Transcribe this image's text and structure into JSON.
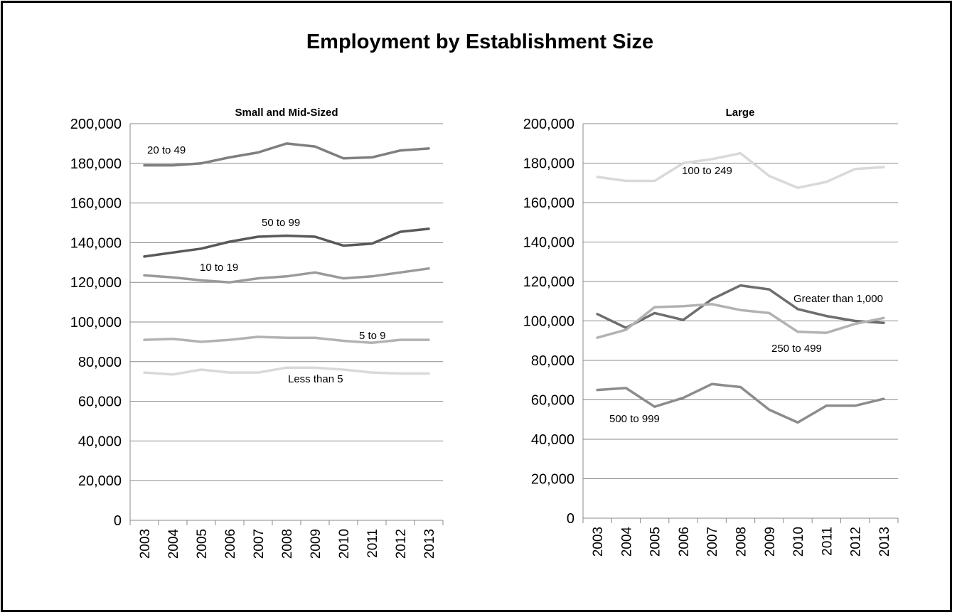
{
  "title": "Employment by Establishment Size",
  "chart_data": [
    {
      "type": "line",
      "title": "Small and Mid-Sized",
      "xlabel": "",
      "ylabel": "",
      "ylim": [
        0,
        200000
      ],
      "yticks": [
        "0",
        "20,000",
        "40,000",
        "60,000",
        "80,000",
        "100,000",
        "120,000",
        "140,000",
        "160,000",
        "180,000",
        "200,000"
      ],
      "categories": [
        "2003",
        "2004",
        "2005",
        "2006",
        "2007",
        "2008",
        "2009",
        "2010",
        "2011",
        "2012",
        "2013"
      ],
      "grid": true,
      "series": [
        {
          "name": "20 to 49",
          "color": "#7f7f7f",
          "values": [
            179000,
            179000,
            180000,
            183000,
            185500,
            190000,
            188500,
            182500,
            183000,
            186500,
            187500
          ]
        },
        {
          "name": "50 to 99",
          "color": "#595959",
          "values": [
            133000,
            135000,
            137000,
            140500,
            143000,
            143500,
            143000,
            138500,
            139500,
            145500,
            147000
          ]
        },
        {
          "name": "10 to 19",
          "color": "#9a9a9a",
          "values": [
            123500,
            122500,
            121000,
            120000,
            122000,
            123000,
            125000,
            122000,
            123000,
            125000,
            127000
          ]
        },
        {
          "name": "5 to 9",
          "color": "#b2b2b2",
          "values": [
            91000,
            91500,
            90000,
            91000,
            92500,
            92000,
            92000,
            90500,
            89500,
            91000,
            91000
          ]
        },
        {
          "name": "Less than 5",
          "color": "#d9d9d9",
          "values": [
            74500,
            73500,
            76000,
            74500,
            74500,
            77000,
            77000,
            76000,
            74500,
            74000,
            74000
          ]
        }
      ]
    },
    {
      "type": "line",
      "title": "Large",
      "xlabel": "",
      "ylabel": "",
      "ylim": [
        0,
        200000
      ],
      "yticks": [
        "0",
        "20,000",
        "40,000",
        "60,000",
        "80,000",
        "100,000",
        "120,000",
        "140,000",
        "160,000",
        "180,000",
        "200,000"
      ],
      "categories": [
        "2003",
        "2004",
        "2005",
        "2006",
        "2007",
        "2008",
        "2009",
        "2010",
        "2011",
        "2012",
        "2013"
      ],
      "grid": true,
      "series": [
        {
          "name": "100 to 249",
          "color": "#d9d9d9",
          "values": [
            173000,
            171000,
            171000,
            180000,
            182000,
            185000,
            173500,
            167500,
            170500,
            177000,
            178000
          ]
        },
        {
          "name": "Greater than 1,000",
          "color": "#6e6e6e",
          "values": [
            103500,
            96500,
            104000,
            100500,
            111000,
            118000,
            116000,
            106000,
            102500,
            100000,
            99000
          ]
        },
        {
          "name": "250 to 499",
          "color": "#b2b2b2",
          "values": [
            91500,
            95500,
            107000,
            107500,
            108500,
            105500,
            104000,
            94500,
            94000,
            98500,
            101500
          ]
        },
        {
          "name": "500 to 999",
          "color": "#8c8c8c",
          "values": [
            65000,
            66000,
            56500,
            61000,
            68000,
            66500,
            55000,
            48500,
            57000,
            57000,
            60500
          ]
        }
      ]
    }
  ]
}
